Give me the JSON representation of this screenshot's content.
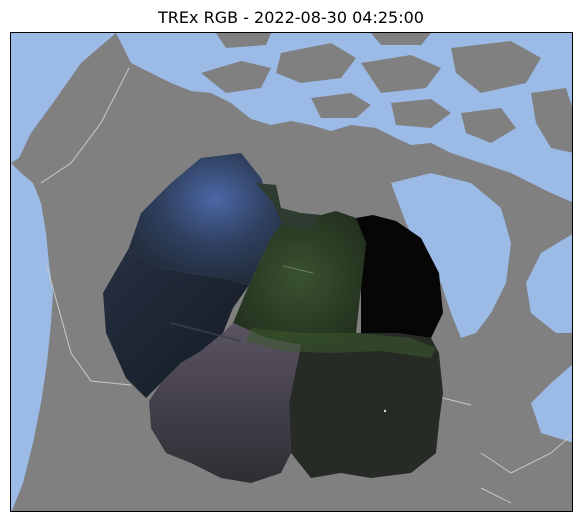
{
  "figure": {
    "title": "TREx RGB - 2022-08-30 04:25:00"
  },
  "map": {
    "colors": {
      "land": "#808080",
      "water": "#9bbae6",
      "borders": "#c8c8c8",
      "frame": "#000000"
    },
    "mosaic_colors": {
      "nw_sky": "#3a4d78",
      "sw_sky": "#1b2330",
      "center_aurora": "#2d3f26",
      "east_dark": "#050505",
      "south_haze": "#4a4550",
      "southeast": "#262a26"
    }
  }
}
